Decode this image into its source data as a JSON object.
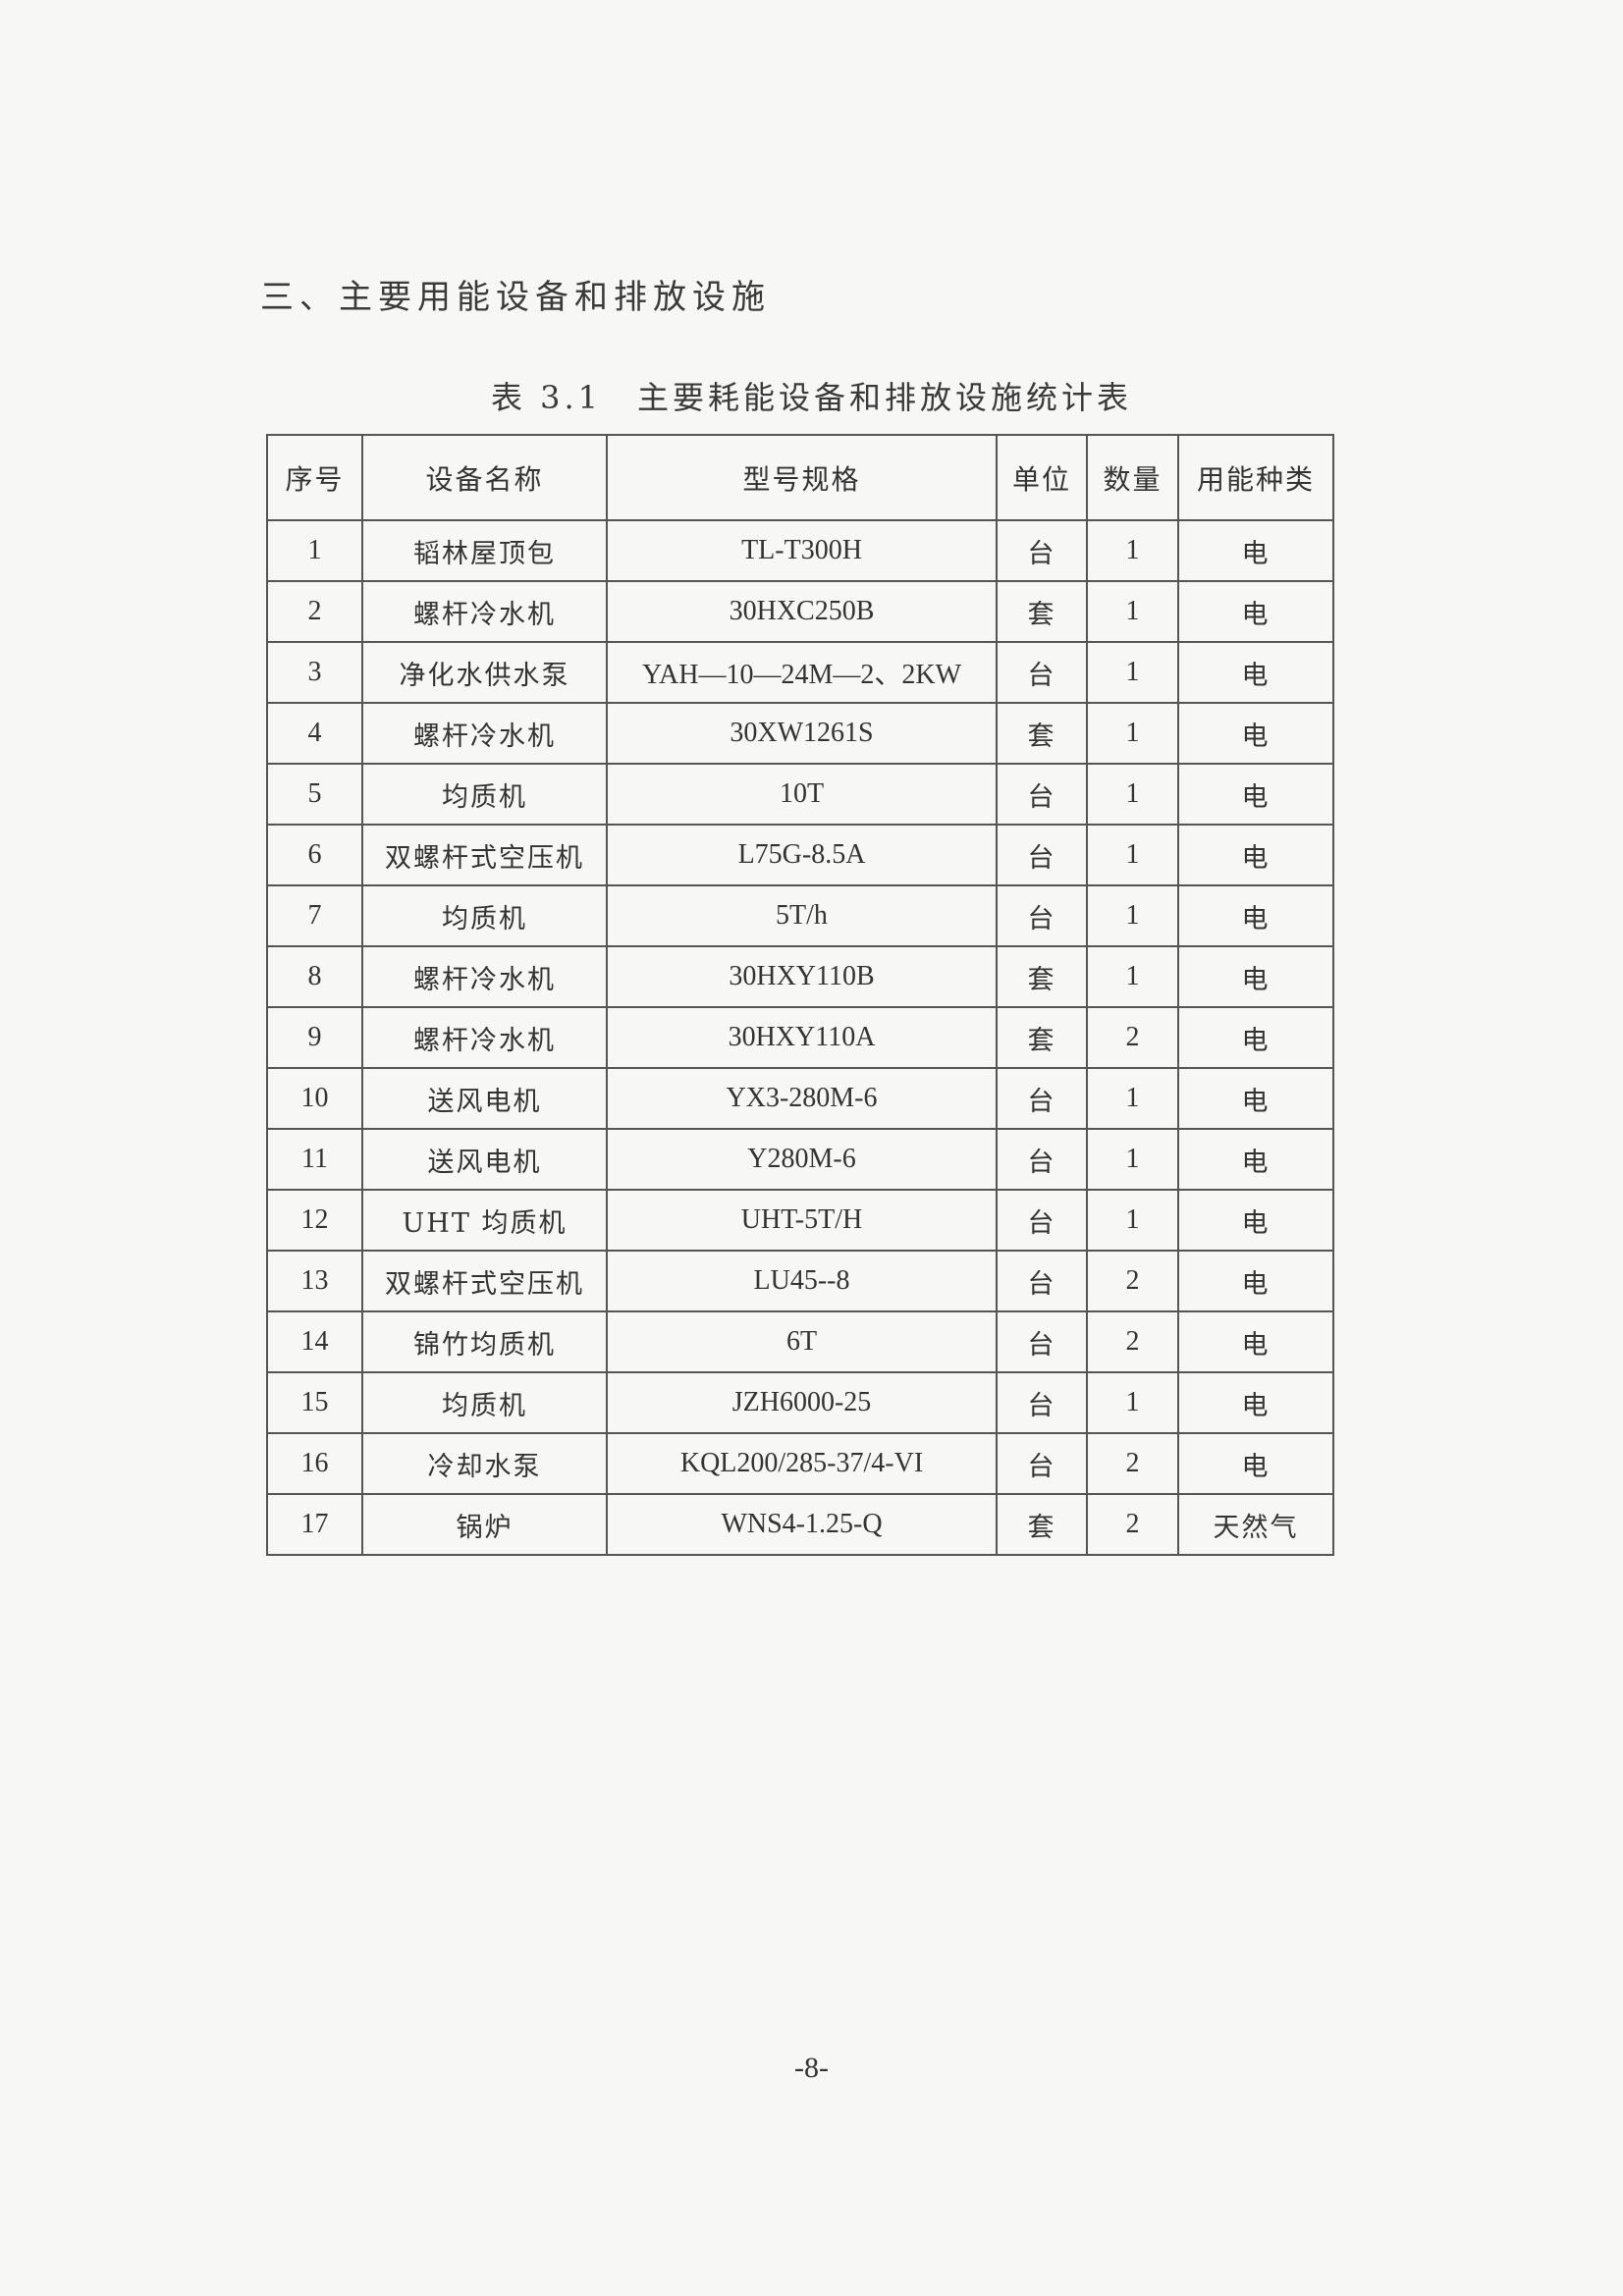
{
  "section_heading": "三、主要用能设备和排放设施",
  "table_caption": "表 3.1　主要耗能设备和排放设施统计表",
  "table": {
    "headers": [
      "序号",
      "设备名称",
      "型号规格",
      "单位",
      "数量",
      "用能种类"
    ],
    "rows": [
      [
        "1",
        "韬林屋顶包",
        "TL-T300H",
        "台",
        "1",
        "电"
      ],
      [
        "2",
        "螺杆冷水机",
        "30HXC250B",
        "套",
        "1",
        "电"
      ],
      [
        "3",
        "净化水供水泵",
        "YAH—10—24M—2、2KW",
        "台",
        "1",
        "电"
      ],
      [
        "4",
        "螺杆冷水机",
        "30XW1261S",
        "套",
        "1",
        "电"
      ],
      [
        "5",
        "均质机",
        "10T",
        "台",
        "1",
        "电"
      ],
      [
        "6",
        "双螺杆式空压机",
        "L75G-8.5A",
        "台",
        "1",
        "电"
      ],
      [
        "7",
        "均质机",
        "5T/h",
        "台",
        "1",
        "电"
      ],
      [
        "8",
        "螺杆冷水机",
        "30HXY110B",
        "套",
        "1",
        "电"
      ],
      [
        "9",
        "螺杆冷水机",
        "30HXY110A",
        "套",
        "2",
        "电"
      ],
      [
        "10",
        "送风电机",
        "YX3-280M-6",
        "台",
        "1",
        "电"
      ],
      [
        "11",
        "送风电机",
        "Y280M-6",
        "台",
        "1",
        "电"
      ],
      [
        "12",
        "UHT 均质机",
        "UHT-5T/H",
        "台",
        "1",
        "电"
      ],
      [
        "13",
        "双螺杆式空压机",
        "LU45--8",
        "台",
        "2",
        "电"
      ],
      [
        "14",
        "锦竹均质机",
        "6T",
        "台",
        "2",
        "电"
      ],
      [
        "15",
        "均质机",
        "JZH6000-25",
        "台",
        "1",
        "电"
      ],
      [
        "16",
        "冷却水泵",
        "KQL200/285-37/4-VI",
        "台",
        "2",
        "电"
      ],
      [
        "17",
        "锅炉",
        "WNS4-1.25-Q",
        "套",
        "2",
        "天然气"
      ]
    ]
  },
  "page_number": "-8-"
}
